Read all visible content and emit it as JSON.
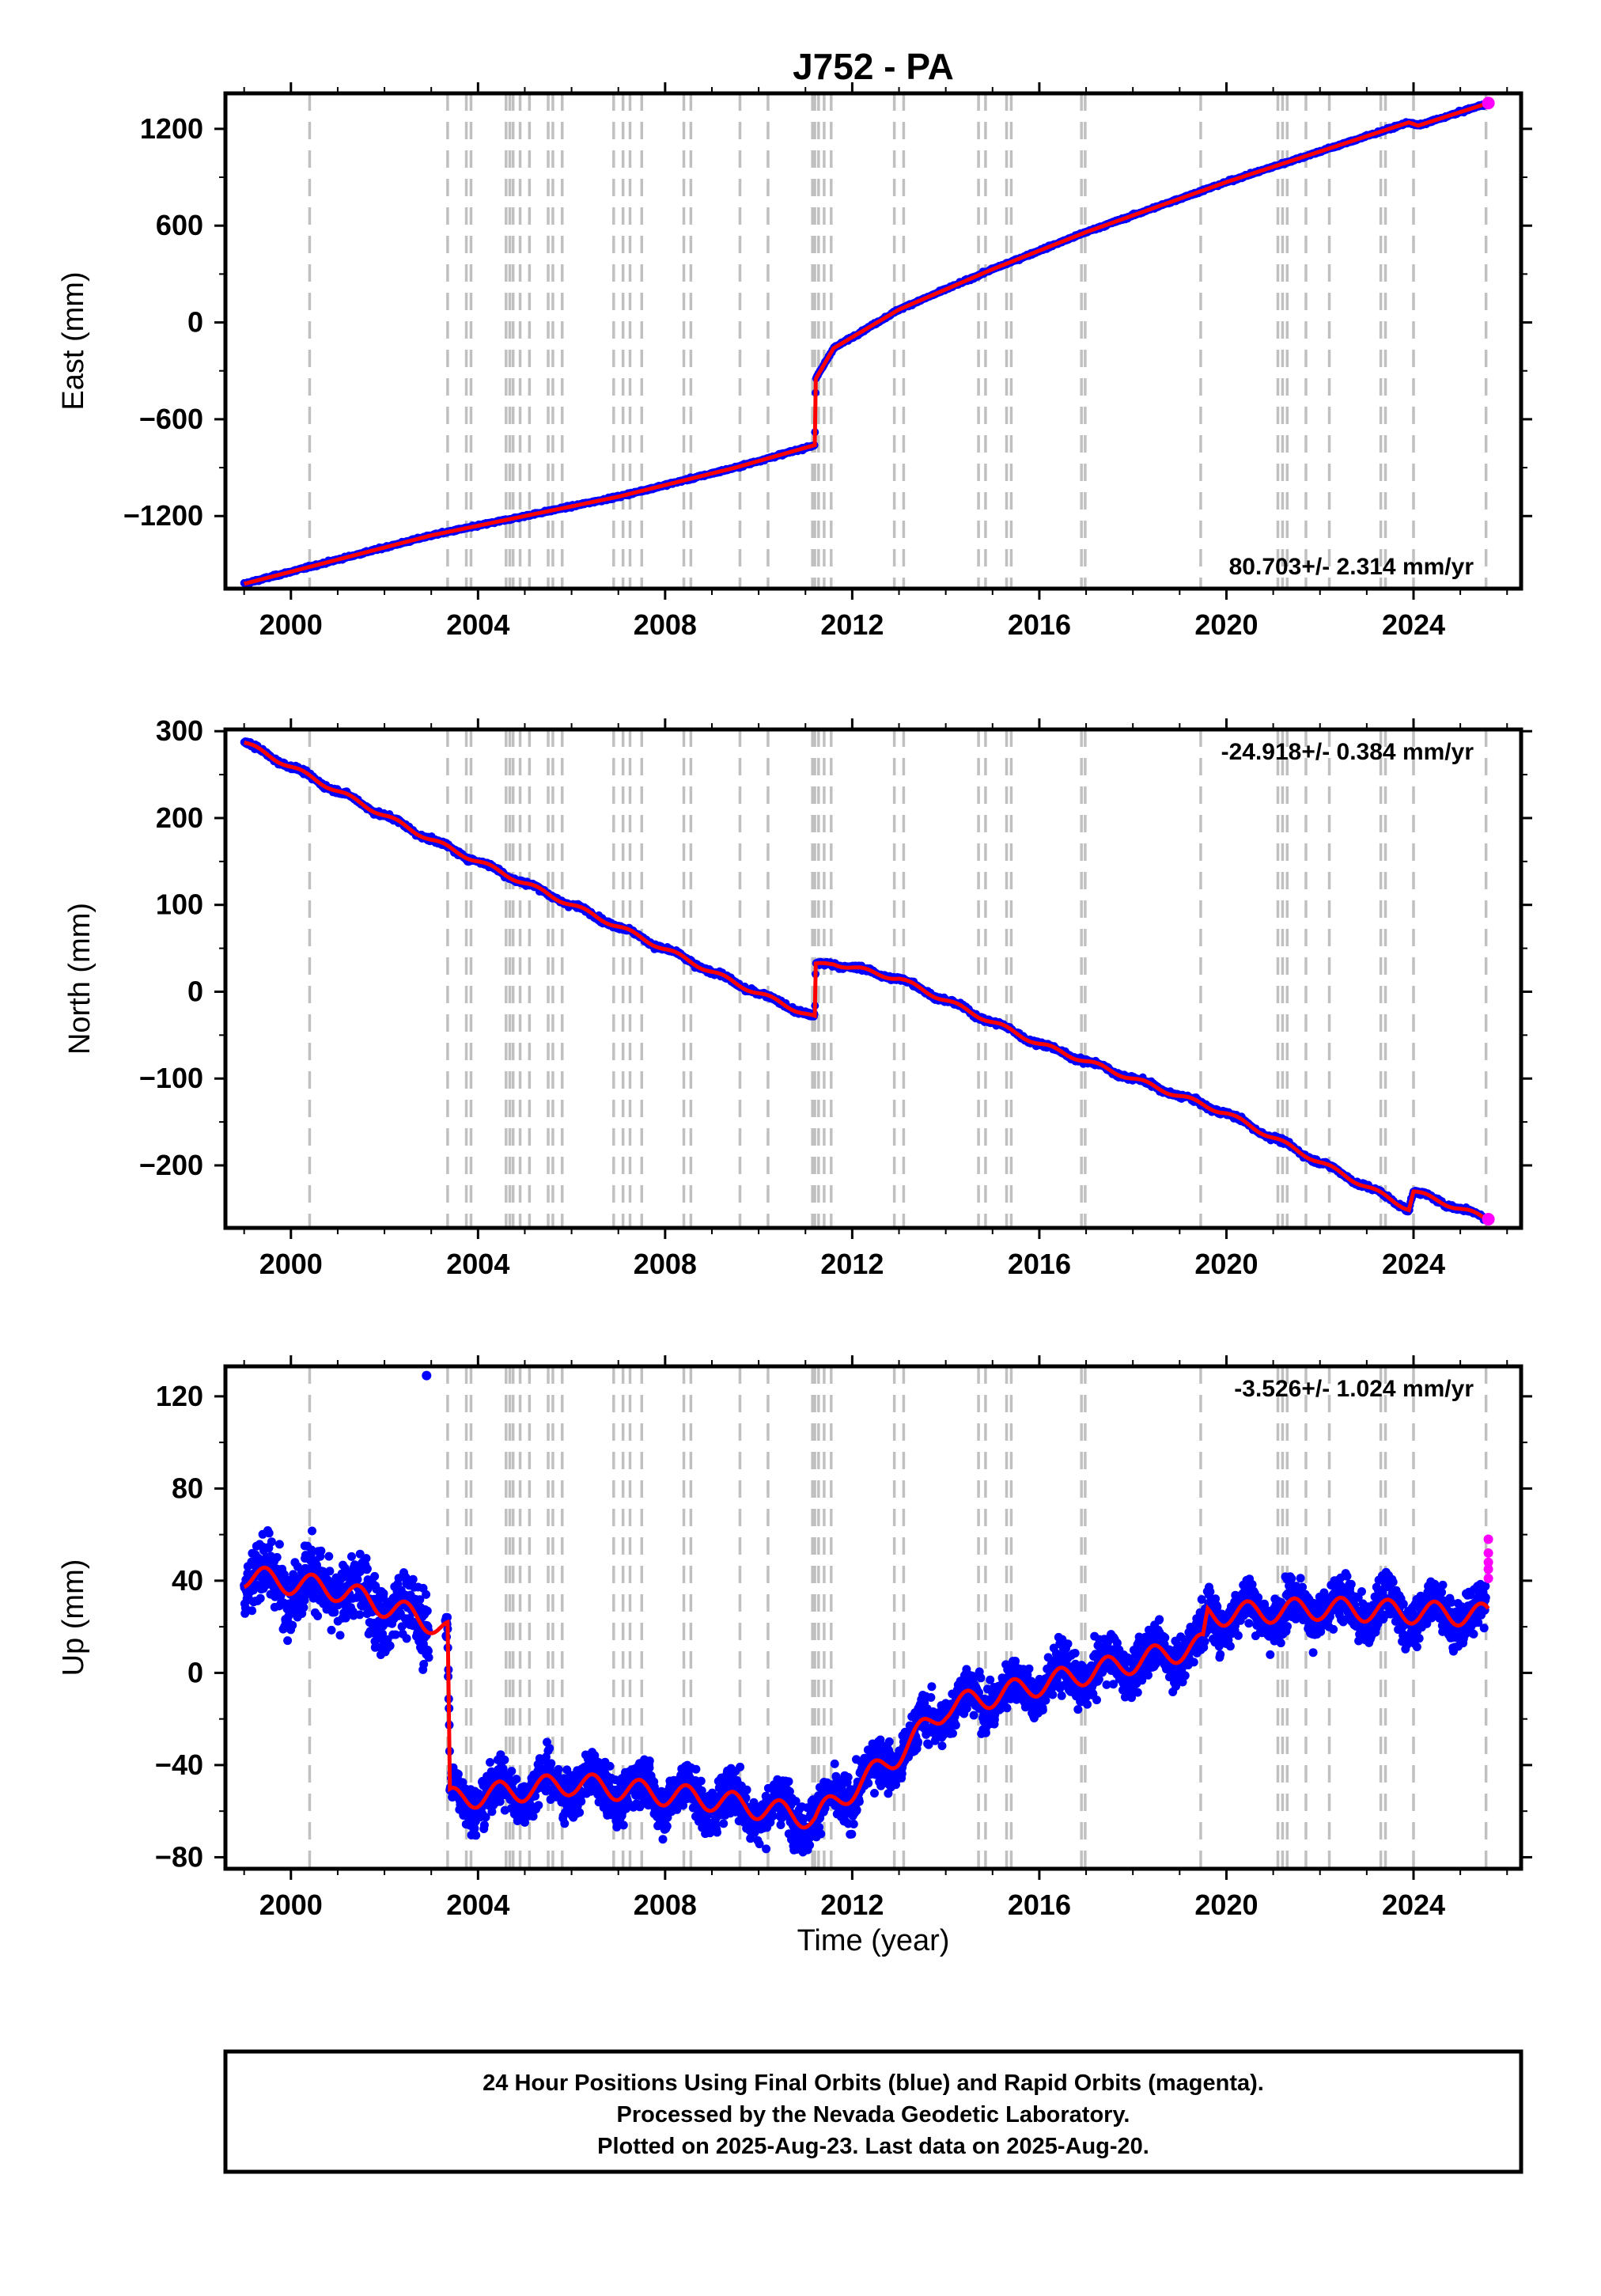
{
  "title": "J752 - PA",
  "xlabel": "Time (year)",
  "footer": {
    "line1": "24 Hour Positions Using Final Orbits (blue) and Rapid Orbits (magenta).",
    "line2": "Processed by the Nevada Geodetic Laboratory.",
    "line3": "Plotted on 2025-Aug-23. Last data on 2025-Aug-20."
  },
  "colors": {
    "final": "#0000ff",
    "rapid": "#ff00ff",
    "model": "#ff0000",
    "events": "#c0c0c0"
  },
  "chart_data": [
    {
      "type": "scatter",
      "name": "east",
      "ylabel": "East (mm)",
      "rate_label": "80.703+/- 2.314 mm/yr",
      "xlim": [
        1998.6,
        2026.3
      ],
      "ylim": [
        -1650,
        1420
      ],
      "yticks": [
        1200,
        600,
        0,
        -600,
        -1200
      ],
      "ytick_labels": [
        "1200",
        "600",
        "0",
        "−600",
        "−1200"
      ],
      "xticks": [
        2000,
        2004,
        2008,
        2012,
        2016,
        2020,
        2024
      ],
      "xtick_labels": [
        "2000",
        "2004",
        "2008",
        "2012",
        "2016",
        "2020",
        "2024"
      ],
      "series_trend": [
        [
          1999.0,
          -1620
        ],
        [
          2003.0,
          -1320
        ],
        [
          2007.0,
          -1080
        ],
        [
          2009.5,
          -900
        ],
        [
          2011.2,
          -760
        ],
        [
          2011.22,
          -350
        ],
        [
          2011.6,
          -160
        ],
        [
          2013.0,
          80
        ],
        [
          2015.0,
          330
        ],
        [
          2017.0,
          560
        ],
        [
          2020.0,
          870
        ],
        [
          2023.9,
          1240
        ],
        [
          2024.1,
          1220
        ],
        [
          2025.6,
          1360
        ]
      ],
      "last_rapid": [
        2025.6,
        1360
      ]
    },
    {
      "type": "scatter",
      "name": "north",
      "ylabel": "North (mm)",
      "rate_label": "-24.918+/- 0.384 mm/yr",
      "xlim": [
        1998.6,
        2026.3
      ],
      "ylim": [
        -272,
        302
      ],
      "yticks": [
        300,
        200,
        100,
        0,
        -100,
        -200
      ],
      "ytick_labels": [
        "300",
        "200",
        "100",
        "0",
        "−100",
        "−200"
      ],
      "xticks": [
        2000,
        2004,
        2008,
        2012,
        2016,
        2020,
        2024
      ],
      "xtick_labels": [
        "2000",
        "2004",
        "2008",
        "2012",
        "2016",
        "2020",
        "2024"
      ],
      "series_trend": [
        [
          1999.0,
          287
        ],
        [
          2003.0,
          175
        ],
        [
          2007.0,
          75
        ],
        [
          2009.5,
          10
        ],
        [
          2011.2,
          -30
        ],
        [
          2011.22,
          30
        ],
        [
          2011.6,
          33
        ],
        [
          2013.0,
          15
        ],
        [
          2016.0,
          -60
        ],
        [
          2020.0,
          -140
        ],
        [
          2023.9,
          -250
        ],
        [
          2024.0,
          -230
        ],
        [
          2025.6,
          -262
        ]
      ],
      "last_rapid": [
        2025.6,
        -262
      ]
    },
    {
      "type": "scatter",
      "name": "up",
      "ylabel": "Up (mm)",
      "rate_label": "-3.526+/- 1.024 mm/yr",
      "xlim": [
        1998.6,
        2026.3
      ],
      "ylim": [
        -85,
        133
      ],
      "yticks": [
        120,
        80,
        40,
        0,
        -40,
        -80
      ],
      "ytick_labels": [
        "120",
        "80",
        "40",
        "0",
        "−40",
        "−80"
      ],
      "xticks": [
        2000,
        2004,
        2008,
        2012,
        2016,
        2020,
        2024
      ],
      "xtick_labels": [
        "2000",
        "2004",
        "2008",
        "2012",
        "2016",
        "2020",
        "2024"
      ],
      "series_trend": [
        [
          1999.0,
          42
        ],
        [
          2001.0,
          36
        ],
        [
          2003.0,
          22
        ],
        [
          2003.35,
          18
        ],
        [
          2003.4,
          -55
        ],
        [
          2006.0,
          -48
        ],
        [
          2009.0,
          -55
        ],
        [
          2011.2,
          -63
        ],
        [
          2013.0,
          -35
        ],
        [
          2014.0,
          -15
        ],
        [
          2016.0,
          -5
        ],
        [
          2019.5,
          12
        ],
        [
          2019.6,
          25
        ],
        [
          2022.0,
          28
        ],
        [
          2025.6,
          25
        ]
      ],
      "outlier": [
        2002.9,
        129
      ],
      "rapid_points": [
        [
          2025.6,
          58
        ],
        [
          2025.6,
          52
        ],
        [
          2025.6,
          48
        ],
        [
          2025.6,
          45
        ],
        [
          2025.6,
          41
        ]
      ]
    }
  ],
  "event_lines": [
    2000.4,
    2003.35,
    2003.75,
    2003.85,
    2004.6,
    2004.68,
    2004.75,
    2004.9,
    2005.1,
    2005.5,
    2005.6,
    2005.8,
    2006.9,
    2007.1,
    2007.25,
    2007.5,
    2008.4,
    2008.55,
    2009.6,
    2010.2,
    2011.15,
    2011.2,
    2011.28,
    2011.4,
    2011.55,
    2012.9,
    2013.1,
    2014.7,
    2014.85,
    2015.3,
    2015.4,
    2016.9,
    2016.98,
    2019.45,
    2021.1,
    2021.2,
    2021.3,
    2021.7,
    2022.2,
    2023.3,
    2023.4,
    2024.0,
    2025.55
  ]
}
